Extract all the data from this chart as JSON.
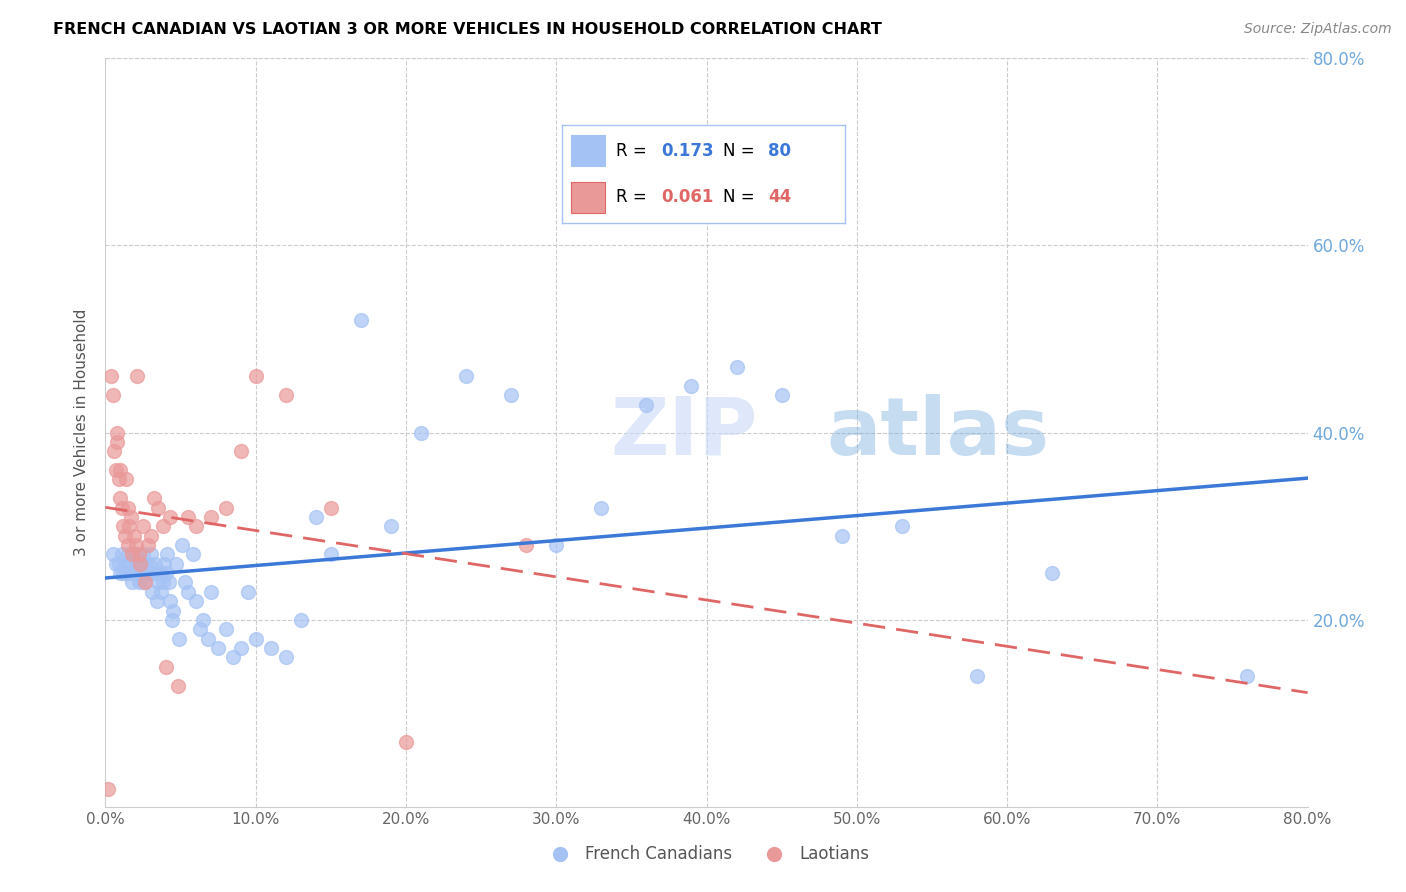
{
  "title": "FRENCH CANADIAN VS LAOTIAN 3 OR MORE VEHICLES IN HOUSEHOLD CORRELATION CHART",
  "source": "Source: ZipAtlas.com",
  "ylabel": "3 or more Vehicles in Household",
  "watermark": "ZIPatlas",
  "blue_R": "0.173",
  "blue_N": "80",
  "pink_R": "0.061",
  "pink_N": "44",
  "blue_color": "#a4c2f4",
  "pink_color": "#ea9999",
  "blue_line_color": "#3c78d8",
  "pink_line_color": "#e06666",
  "right_axis_color": "#6fa8dc",
  "legend_border_color": "#a4c2f4",
  "background_color": "#ffffff",
  "xlim": [
    0.0,
    0.8
  ],
  "ylim": [
    0.0,
    0.8
  ],
  "ytick_labels": [
    "",
    "20.0%",
    "40.0%",
    "60.0%",
    "80.0%"
  ],
  "ytick_vals": [
    0.0,
    0.2,
    0.4,
    0.6,
    0.8
  ],
  "xtick_vals": [
    0.0,
    0.1,
    0.2,
    0.3,
    0.4,
    0.5,
    0.6,
    0.7,
    0.8
  ],
  "blue_points_x": [
    0.005,
    0.007,
    0.009,
    0.01,
    0.011,
    0.012,
    0.013,
    0.014,
    0.015,
    0.015,
    0.016,
    0.017,
    0.018,
    0.019,
    0.02,
    0.02,
    0.021,
    0.022,
    0.023,
    0.024,
    0.025,
    0.025,
    0.026,
    0.027,
    0.028,
    0.029,
    0.03,
    0.031,
    0.032,
    0.033,
    0.034,
    0.035,
    0.036,
    0.037,
    0.038,
    0.039,
    0.04,
    0.041,
    0.042,
    0.043,
    0.044,
    0.045,
    0.047,
    0.049,
    0.051,
    0.053,
    0.055,
    0.058,
    0.06,
    0.063,
    0.065,
    0.068,
    0.07,
    0.075,
    0.08,
    0.085,
    0.09,
    0.095,
    0.1,
    0.11,
    0.12,
    0.13,
    0.14,
    0.15,
    0.17,
    0.19,
    0.21,
    0.24,
    0.27,
    0.3,
    0.33,
    0.36,
    0.39,
    0.42,
    0.45,
    0.49,
    0.53,
    0.58,
    0.63,
    0.76
  ],
  "blue_points_y": [
    0.27,
    0.26,
    0.26,
    0.25,
    0.27,
    0.25,
    0.26,
    0.25,
    0.27,
    0.25,
    0.26,
    0.25,
    0.24,
    0.25,
    0.26,
    0.27,
    0.25,
    0.24,
    0.25,
    0.26,
    0.24,
    0.27,
    0.26,
    0.25,
    0.25,
    0.26,
    0.27,
    0.23,
    0.25,
    0.26,
    0.22,
    0.24,
    0.25,
    0.23,
    0.24,
    0.26,
    0.25,
    0.27,
    0.24,
    0.22,
    0.2,
    0.21,
    0.26,
    0.18,
    0.28,
    0.24,
    0.23,
    0.27,
    0.22,
    0.19,
    0.2,
    0.18,
    0.23,
    0.17,
    0.19,
    0.16,
    0.17,
    0.23,
    0.18,
    0.17,
    0.16,
    0.2,
    0.31,
    0.27,
    0.52,
    0.3,
    0.4,
    0.46,
    0.44,
    0.28,
    0.32,
    0.43,
    0.45,
    0.47,
    0.44,
    0.29,
    0.3,
    0.14,
    0.25,
    0.14
  ],
  "pink_points_x": [
    0.002,
    0.004,
    0.005,
    0.006,
    0.007,
    0.008,
    0.008,
    0.009,
    0.01,
    0.01,
    0.011,
    0.012,
    0.013,
    0.014,
    0.015,
    0.015,
    0.016,
    0.017,
    0.018,
    0.019,
    0.02,
    0.021,
    0.022,
    0.023,
    0.025,
    0.026,
    0.028,
    0.03,
    0.032,
    0.035,
    0.038,
    0.04,
    0.043,
    0.048,
    0.055,
    0.06,
    0.07,
    0.08,
    0.09,
    0.1,
    0.12,
    0.15,
    0.2,
    0.28
  ],
  "pink_points_y": [
    0.02,
    0.46,
    0.44,
    0.38,
    0.36,
    0.39,
    0.4,
    0.35,
    0.33,
    0.36,
    0.32,
    0.3,
    0.29,
    0.35,
    0.32,
    0.28,
    0.3,
    0.31,
    0.27,
    0.29,
    0.28,
    0.46,
    0.27,
    0.26,
    0.3,
    0.24,
    0.28,
    0.29,
    0.33,
    0.32,
    0.3,
    0.15,
    0.31,
    0.13,
    0.31,
    0.3,
    0.31,
    0.32,
    0.38,
    0.46,
    0.44,
    0.32,
    0.07,
    0.28
  ]
}
